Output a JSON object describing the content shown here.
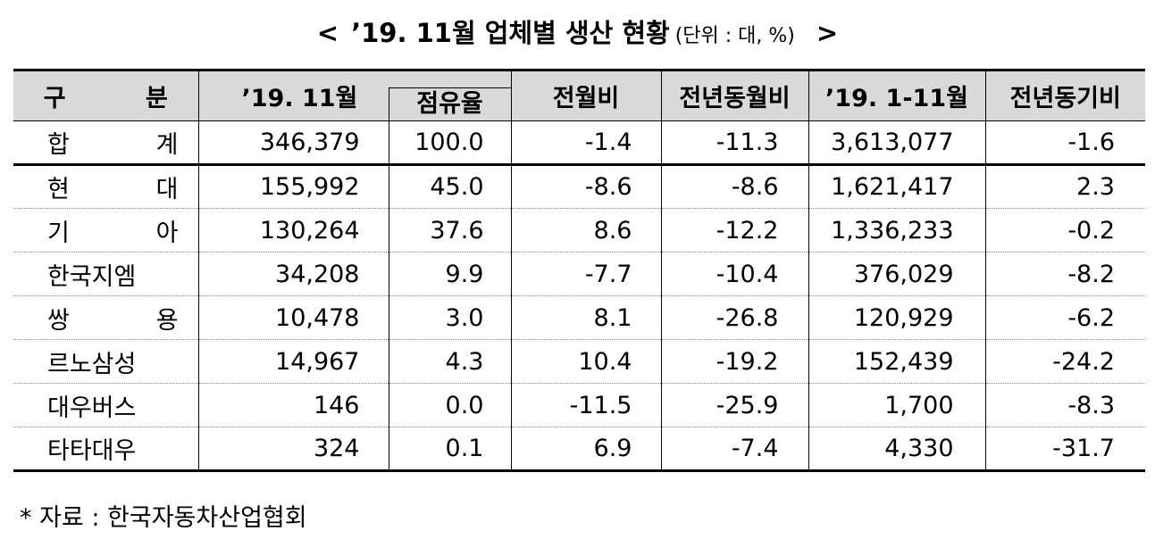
{
  "title": {
    "open": "<",
    "text": "’19. 11월 업체별 생산 현황",
    "unit": "(단위 : 대, %)",
    "close": ">"
  },
  "table": {
    "headers": [
      "구 분",
      "’19. 11월",
      "점유율",
      "전월비",
      "전년동월비",
      "’19. 1-11월",
      "전년동기비"
    ],
    "rows": [
      [
        "합 계",
        "346,379",
        "100.0",
        "-1.4",
        "-11.3",
        "3,613,077",
        "-1.6"
      ],
      [
        "현 대",
        "155,992",
        "45.0",
        "-8.6",
        "-8.6",
        "1,621,417",
        "2.3"
      ],
      [
        "기 아",
        "130,264",
        "37.6",
        "8.6",
        "-12.2",
        "1,336,233",
        "-0.2"
      ],
      [
        "한국지엠",
        "34,208",
        "9.9",
        "-7.7",
        "-10.4",
        "376,029",
        "-8.2"
      ],
      [
        "쌍 용",
        "10,478",
        "3.0",
        "8.1",
        "-26.8",
        "120,929",
        "-6.2"
      ],
      [
        "르노삼성",
        "14,967",
        "4.3",
        "10.4",
        "-19.2",
        "152,439",
        "-24.2"
      ],
      [
        "대우버스",
        "146",
        "0.0",
        "-11.5",
        "-25.9",
        "1,700",
        "-8.3"
      ],
      [
        "타타대우",
        "324",
        "0.1",
        "6.9",
        "-7.4",
        "4,330",
        "-31.7"
      ]
    ]
  },
  "footer": "* 자료 : 한국자동차산업협회"
}
